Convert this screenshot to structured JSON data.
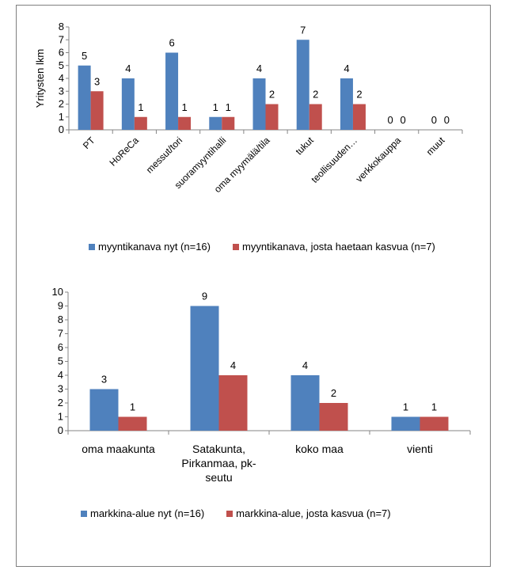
{
  "colors": {
    "series1": "#4f81bd",
    "series2": "#c0504d",
    "axis": "#868686",
    "frame": "#7f7f7f"
  },
  "chart_data": [
    {
      "type": "bar",
      "ylabel": "Yritysten lkm",
      "xlabel": "",
      "ylim": [
        0,
        8
      ],
      "yticks": [
        "0",
        "1",
        "2",
        "3",
        "4",
        "5",
        "6",
        "7",
        "8"
      ],
      "categories": [
        "PT",
        "HoReCa",
        "messut/tori",
        "suoramyyntihalli",
        "oma myymälä/tila",
        "tukut",
        "teollisuuden…",
        "verkkokauppa",
        "muut"
      ],
      "series": [
        {
          "name": "myyntikanava nyt (n=16)",
          "values": [
            5,
            4,
            6,
            1,
            4,
            7,
            4,
            0,
            0
          ]
        },
        {
          "name": "myyntikanava, josta haetaan kasvua (n=7)",
          "values": [
            3,
            1,
            1,
            1,
            2,
            2,
            2,
            0,
            0
          ]
        }
      ],
      "legend": "bottom"
    },
    {
      "type": "bar",
      "xlabel": "",
      "ylabel": "",
      "ylim": [
        0,
        10
      ],
      "yticks": [
        "0",
        "1",
        "2",
        "3",
        "4",
        "5",
        "6",
        "7",
        "8",
        "9",
        "10"
      ],
      "categories": [
        "oma maakunta",
        "Satakunta, Pirkanmaa, pk-seutu",
        "koko maa",
        "vienti"
      ],
      "category_lines": [
        [
          "oma maakunta"
        ],
        [
          "Satakunta,",
          "Pirkanmaa, pk-",
          "seutu"
        ],
        [
          "koko maa"
        ],
        [
          "vienti"
        ]
      ],
      "series": [
        {
          "name": "markkina-alue nyt (n=16)",
          "values": [
            3,
            9,
            4,
            1
          ]
        },
        {
          "name": "markkina-alue, josta kasvua (n=7)",
          "values": [
            1,
            4,
            2,
            1
          ]
        }
      ],
      "legend": "bottom"
    }
  ]
}
